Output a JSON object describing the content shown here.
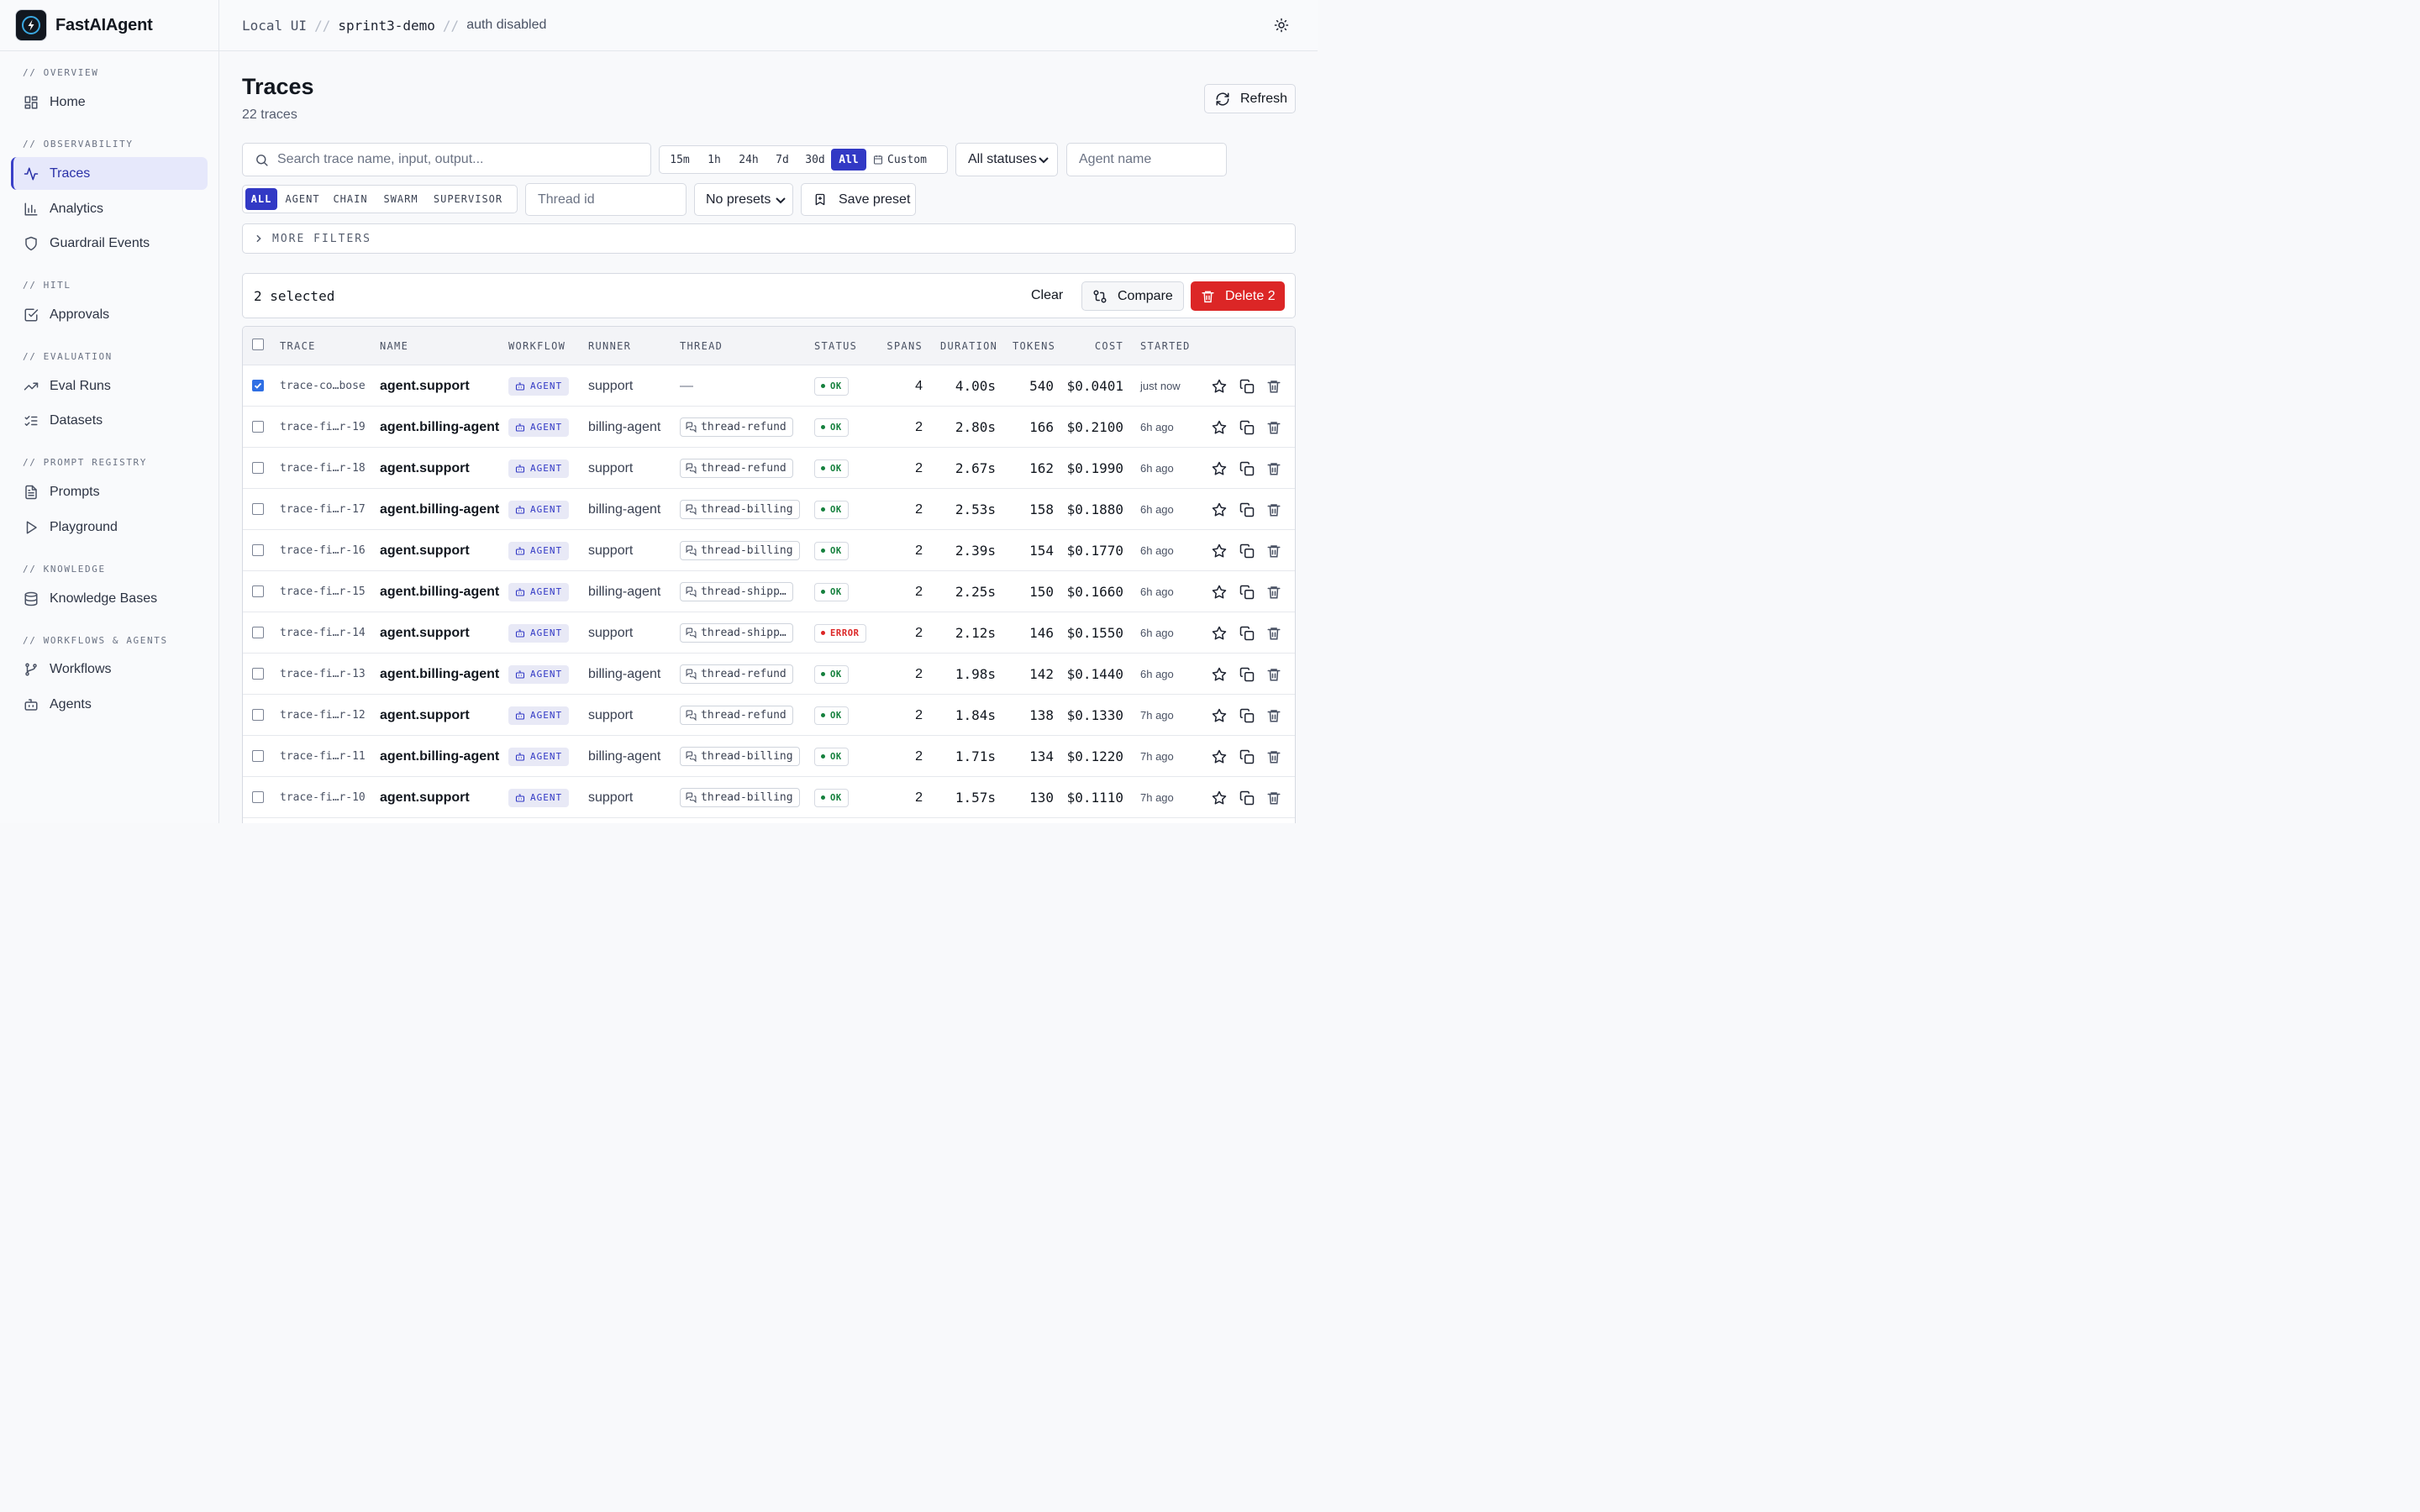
{
  "app": {
    "name": "FastAIAgent"
  },
  "breadcrumb": {
    "part1": "Local UI",
    "part2": "sprint3-demo",
    "part3": "auth disabled",
    "sep": "//"
  },
  "sidebar": {
    "sections": [
      {
        "label": "// OVERVIEW",
        "items": [
          {
            "label": "Home",
            "icon": "grid-icon"
          }
        ]
      },
      {
        "label": "// OBSERVABILITY",
        "items": [
          {
            "label": "Traces",
            "icon": "activity-icon",
            "active": true
          },
          {
            "label": "Analytics",
            "icon": "bar-chart-icon"
          },
          {
            "label": "Guardrail Events",
            "icon": "shield-icon"
          }
        ]
      },
      {
        "label": "// HITL",
        "items": [
          {
            "label": "Approvals",
            "icon": "check-square-icon"
          }
        ]
      },
      {
        "label": "// EVALUATION",
        "items": [
          {
            "label": "Eval Runs",
            "icon": "trending-up-icon"
          },
          {
            "label": "Datasets",
            "icon": "list-checks-icon"
          }
        ]
      },
      {
        "label": "// PROMPT REGISTRY",
        "items": [
          {
            "label": "Prompts",
            "icon": "file-text-icon"
          },
          {
            "label": "Playground",
            "icon": "play-icon"
          }
        ]
      },
      {
        "label": "// KNOWLEDGE",
        "items": [
          {
            "label": "Knowledge Bases",
            "icon": "database-icon"
          }
        ]
      },
      {
        "label": "// WORKFLOWS & AGENTS",
        "items": [
          {
            "label": "Workflows",
            "icon": "git-branch-icon"
          },
          {
            "label": "Agents",
            "icon": "bot-icon"
          }
        ]
      }
    ]
  },
  "page": {
    "title": "Traces",
    "subtitle": "22 traces",
    "refresh_label": "Refresh"
  },
  "filters": {
    "search_placeholder": "Search trace name, input, output...",
    "ranges": [
      "15m",
      "1h",
      "24h",
      "7d",
      "30d",
      "All"
    ],
    "active_range": "All",
    "custom_label": "Custom",
    "status_value": "All statuses",
    "agent_placeholder": "Agent name",
    "types": [
      "ALL",
      "AGENT",
      "CHAIN",
      "SWARM",
      "SUPERVISOR"
    ],
    "active_type": "ALL",
    "thread_placeholder": "Thread id",
    "preset_value": "No presets",
    "save_preset_label": "Save preset",
    "more_filters_label": "MORE FILTERS"
  },
  "selection": {
    "count_label": "2 selected",
    "clear_label": "Clear",
    "compare_label": "Compare",
    "delete_label": "Delete 2"
  },
  "table": {
    "columns": [
      "TRACE",
      "NAME",
      "WORKFLOW",
      "RUNNER",
      "THREAD",
      "STATUS",
      "SPANS",
      "DURATION",
      "TOKENS",
      "COST",
      "STARTED"
    ],
    "rows": [
      {
        "trace": "trace-co…bose",
        "name": "agent.support",
        "workflow": "AGENT",
        "runner": "support",
        "thread": "—",
        "status": "OK",
        "spans": "4",
        "duration": "4.00s",
        "tokens": "540",
        "cost": "$0.0401",
        "started": "just now",
        "checked": true
      },
      {
        "trace": "trace-fi…r-19",
        "name": "agent.billing-agent",
        "workflow": "AGENT",
        "runner": "billing-agent",
        "thread": "thread-refund",
        "status": "OK",
        "spans": "2",
        "duration": "2.80s",
        "tokens": "166",
        "cost": "$0.2100",
        "started": "6h ago",
        "checked": false
      },
      {
        "trace": "trace-fi…r-18",
        "name": "agent.support",
        "workflow": "AGENT",
        "runner": "support",
        "thread": "thread-refund",
        "status": "OK",
        "spans": "2",
        "duration": "2.67s",
        "tokens": "162",
        "cost": "$0.1990",
        "started": "6h ago",
        "checked": false
      },
      {
        "trace": "trace-fi…r-17",
        "name": "agent.billing-agent",
        "workflow": "AGENT",
        "runner": "billing-agent",
        "thread": "thread-billing",
        "status": "OK",
        "spans": "2",
        "duration": "2.53s",
        "tokens": "158",
        "cost": "$0.1880",
        "started": "6h ago",
        "checked": false
      },
      {
        "trace": "trace-fi…r-16",
        "name": "agent.support",
        "workflow": "AGENT",
        "runner": "support",
        "thread": "thread-billing",
        "status": "OK",
        "spans": "2",
        "duration": "2.39s",
        "tokens": "154",
        "cost": "$0.1770",
        "started": "6h ago",
        "checked": false
      },
      {
        "trace": "trace-fi…r-15",
        "name": "agent.billing-agent",
        "workflow": "AGENT",
        "runner": "billing-agent",
        "thread": "thread-shipp…",
        "status": "OK",
        "spans": "2",
        "duration": "2.25s",
        "tokens": "150",
        "cost": "$0.1660",
        "started": "6h ago",
        "checked": false
      },
      {
        "trace": "trace-fi…r-14",
        "name": "agent.support",
        "workflow": "AGENT",
        "runner": "support",
        "thread": "thread-shipp…",
        "status": "ERROR",
        "spans": "2",
        "duration": "2.12s",
        "tokens": "146",
        "cost": "$0.1550",
        "started": "6h ago",
        "checked": false
      },
      {
        "trace": "trace-fi…r-13",
        "name": "agent.billing-agent",
        "workflow": "AGENT",
        "runner": "billing-agent",
        "thread": "thread-refund",
        "status": "OK",
        "spans": "2",
        "duration": "1.98s",
        "tokens": "142",
        "cost": "$0.1440",
        "started": "6h ago",
        "checked": false
      },
      {
        "trace": "trace-fi…r-12",
        "name": "agent.support",
        "workflow": "AGENT",
        "runner": "support",
        "thread": "thread-refund",
        "status": "OK",
        "spans": "2",
        "duration": "1.84s",
        "tokens": "138",
        "cost": "$0.1330",
        "started": "7h ago",
        "checked": false
      },
      {
        "trace": "trace-fi…r-11",
        "name": "agent.billing-agent",
        "workflow": "AGENT",
        "runner": "billing-agent",
        "thread": "thread-billing",
        "status": "OK",
        "spans": "2",
        "duration": "1.71s",
        "tokens": "134",
        "cost": "$0.1220",
        "started": "7h ago",
        "checked": false
      },
      {
        "trace": "trace-fi…r-10",
        "name": "agent.support",
        "workflow": "AGENT",
        "runner": "support",
        "thread": "thread-billing",
        "status": "OK",
        "spans": "2",
        "duration": "1.57s",
        "tokens": "130",
        "cost": "$0.1110",
        "started": "7h ago",
        "checked": false
      }
    ]
  },
  "colors": {
    "accent": "#3239c5",
    "danger": "#dc2626",
    "ok": "#15803d"
  }
}
